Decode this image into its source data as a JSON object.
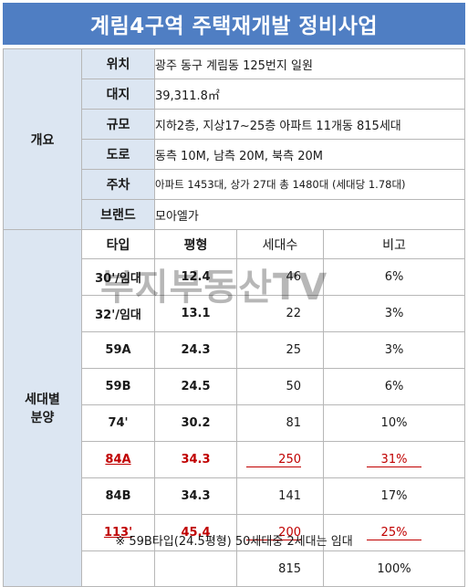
{
  "title": "계림4구역 주택재개발 정비사업",
  "overview": {
    "section_label": "개요",
    "rows": [
      {
        "key": "위치",
        "value": "광주 동구 계림동 125번지 일원"
      },
      {
        "key": "대지",
        "value": "39,311.8㎡"
      },
      {
        "key": "규모",
        "value": "지하2층, 지상17~25층 아파트 11개동 815세대"
      },
      {
        "key": "도로",
        "value": "동측 10M, 남측 20M, 북측 20M"
      },
      {
        "key": "주차",
        "value": "아파트 1453대, 상가 27대 총 1480대 (세대당 1.78대)"
      },
      {
        "key": "브랜드",
        "value": "모아엘가"
      }
    ]
  },
  "units": {
    "section_label": "세대별\n분양",
    "headers": {
      "type": "타입",
      "pyeong": "평형",
      "count": "세대수",
      "note": "비고"
    },
    "rows": [
      {
        "type": "30'/임대",
        "pyeong": "12.4",
        "count": "46",
        "note": "6%"
      },
      {
        "type": "32'/임대",
        "pyeong": "13.1",
        "count": "22",
        "note": "3%"
      },
      {
        "type": "59A",
        "pyeong": "24.3",
        "count": "25",
        "note": "3%"
      },
      {
        "type": "59B",
        "pyeong": "24.5",
        "count": "50",
        "note": "6%"
      },
      {
        "type": "74'",
        "pyeong": "30.2",
        "count": "81",
        "note": "10%"
      },
      {
        "type": "84A",
        "pyeong": "34.3",
        "count": "250",
        "note": "31%"
      },
      {
        "type": "84B",
        "pyeong": "34.3",
        "count": "141",
        "note": "17%"
      },
      {
        "type": "113'",
        "pyeong": "45.4",
        "count": "200",
        "note": "25%"
      }
    ],
    "total": {
      "count": "815",
      "note": "100%"
    }
  },
  "watermark": "부지부동산TV",
  "footnote": "※ 59B타입(24.5평형) 50세대중 2세대는 임대",
  "colors": {
    "header_blue": "#4f7ec3",
    "label_bg": "#dce6f2",
    "highlight_red": "#c00000"
  }
}
